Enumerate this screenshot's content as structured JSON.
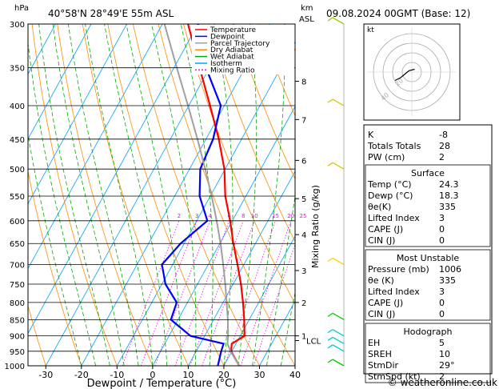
{
  "header": {
    "unit_p": "hPa",
    "location": "40°58'N  28°49'E  55m  ASL",
    "unit_km": "km",
    "unit_asl": "ASL",
    "datetime": "09.08.2024  00GMT  (Base: 12)"
  },
  "legend": [
    {
      "label": "Temperature",
      "color": "#ff0000",
      "dash": ""
    },
    {
      "label": "Dewpoint",
      "color": "#0000ff",
      "dash": ""
    },
    {
      "label": "Parcel Trajectory",
      "color": "#a0a0a0",
      "dash": ""
    },
    {
      "label": "Dry Adiabat",
      "color": "#ff8c00",
      "dash": ""
    },
    {
      "label": "Wet Adiabat",
      "color": "#00aa00",
      "dash": ""
    },
    {
      "label": "Isotherm",
      "color": "#00a0ff",
      "dash": ""
    },
    {
      "label": "Mixing Ratio",
      "color": "#ff00ff",
      "dash": "2,2"
    }
  ],
  "chart_data": {
    "type": "line",
    "chart_kind": "skew-T log-p diagram",
    "xlabel": "Dewpoint / Temperature (°C)",
    "xticks": [
      -30,
      -20,
      -10,
      0,
      10,
      20,
      30,
      40
    ],
    "xlim": [
      -35,
      40
    ],
    "pressure_levels": [
      300,
      350,
      400,
      450,
      500,
      550,
      600,
      650,
      700,
      750,
      800,
      850,
      900,
      950,
      1000
    ],
    "ylim": [
      1000,
      300
    ],
    "y_scale": "log",
    "km_ticks": [
      {
        "km": "8",
        "p": 367
      },
      {
        "km": "7",
        "p": 420
      },
      {
        "km": "6",
        "p": 485
      },
      {
        "km": "5",
        "p": 555
      },
      {
        "km": "4",
        "p": 630
      },
      {
        "km": "3",
        "p": 715
      },
      {
        "km": "2",
        "p": 800
      },
      {
        "km": "1",
        "p": 900
      },
      {
        "km": "LCL",
        "p": 915
      }
    ],
    "mixing_ratio_axis_label": "Mixing Ratio (g/kg)",
    "mixing_ratio_labels": [
      "2",
      "3",
      "4",
      "6",
      "8",
      "10",
      "15",
      "20",
      "25"
    ],
    "mixing_ratio_values": [
      2,
      3,
      4,
      6,
      8,
      10,
      15,
      20,
      25
    ],
    "series": [
      {
        "name": "Temperature",
        "color": "#ff0000",
        "p": [
          1000,
          950,
          925,
          900,
          850,
          800,
          750,
          700,
          650,
          600,
          550,
          500,
          450,
          400,
          350,
          300
        ],
        "t": [
          24.3,
          19.8,
          18.8,
          21.2,
          18.6,
          15.6,
          12.2,
          8.2,
          3.8,
          -0.6,
          -5.8,
          -10.2,
          -16.4,
          -24.0,
          -32.8,
          -42.8
        ]
      },
      {
        "name": "Dewpoint",
        "color": "#0000ff",
        "p": [
          1000,
          950,
          925,
          900,
          850,
          800,
          750,
          700,
          650,
          600,
          550,
          500,
          450,
          400,
          350,
          300
        ],
        "t": [
          18.3,
          17.0,
          16.5,
          6.0,
          -2.0,
          -3.0,
          -9.0,
          -13.0,
          -11.0,
          -7.0,
          -13.0,
          -17.0,
          -18.0,
          -21.0,
          -31.0,
          -40.0
        ]
      },
      {
        "name": "Parcel Trajectory",
        "color": "#a0a0a0",
        "p": [
          1000,
          950,
          925,
          900,
          850,
          800,
          750,
          700,
          650,
          600,
          550,
          500,
          450,
          400,
          350,
          300
        ],
        "t": [
          24.3,
          19.6,
          17.6,
          16.6,
          14.0,
          11.0,
          7.8,
          4.2,
          0.2,
          -4.4,
          -9.6,
          -15.6,
          -22.4,
          -30.2,
          -39.2,
          -49.4
        ]
      }
    ],
    "wind_barbs": [
      {
        "p": 1000,
        "color": "#00cc00"
      },
      {
        "p": 950,
        "color": "#00cccc"
      },
      {
        "p": 925,
        "color": "#00cccc"
      },
      {
        "p": 900,
        "color": "#00cccc"
      },
      {
        "p": 850,
        "color": "#00cc00"
      },
      {
        "p": 700,
        "color": "#ffcc00"
      },
      {
        "p": 500,
        "color": "#cccc00"
      },
      {
        "p": 400,
        "color": "#cccc00"
      },
      {
        "p": 300,
        "color": "#99cc00"
      }
    ],
    "hodograph": {
      "unit": "kt",
      "ring_labels": [
        "20",
        "40"
      ],
      "points": [
        [
          1,
          1
        ],
        [
          -1,
          0.5
        ],
        [
          -4,
          -2
        ],
        [
          -6,
          -3
        ]
      ]
    }
  },
  "indices": {
    "rows": [
      {
        "label": "K",
        "value": "-8"
      },
      {
        "label": "Totals Totals",
        "value": "28"
      },
      {
        "label": "PW (cm)",
        "value": "2"
      }
    ]
  },
  "surface": {
    "title": "Surface",
    "rows": [
      {
        "label": "Temp (°C)",
        "value": "24.3"
      },
      {
        "label": "Dewp (°C)",
        "value": "18.3"
      },
      {
        "label": "θe(K)",
        "value": "335"
      },
      {
        "label": "Lifted Index",
        "value": "3"
      },
      {
        "label": "CAPE (J)",
        "value": "0"
      },
      {
        "label": "CIN (J)",
        "value": "0"
      }
    ]
  },
  "most_unstable": {
    "title": "Most Unstable",
    "rows": [
      {
        "label": "Pressure (mb)",
        "value": "1006"
      },
      {
        "label": "θe (K)",
        "value": "335"
      },
      {
        "label": "Lifted Index",
        "value": "3"
      },
      {
        "label": "CAPE (J)",
        "value": "0"
      },
      {
        "label": "CIN (J)",
        "value": "0"
      }
    ]
  },
  "hodograph_table": {
    "title": "Hodograph",
    "rows": [
      {
        "label": "EH",
        "value": "5"
      },
      {
        "label": "SREH",
        "value": "10"
      },
      {
        "label": "StmDir",
        "value": "29°"
      },
      {
        "label": "StmSpd (kt)",
        "value": "2"
      }
    ]
  },
  "footer": {
    "copyright": "© weatheronline.co.uk"
  }
}
